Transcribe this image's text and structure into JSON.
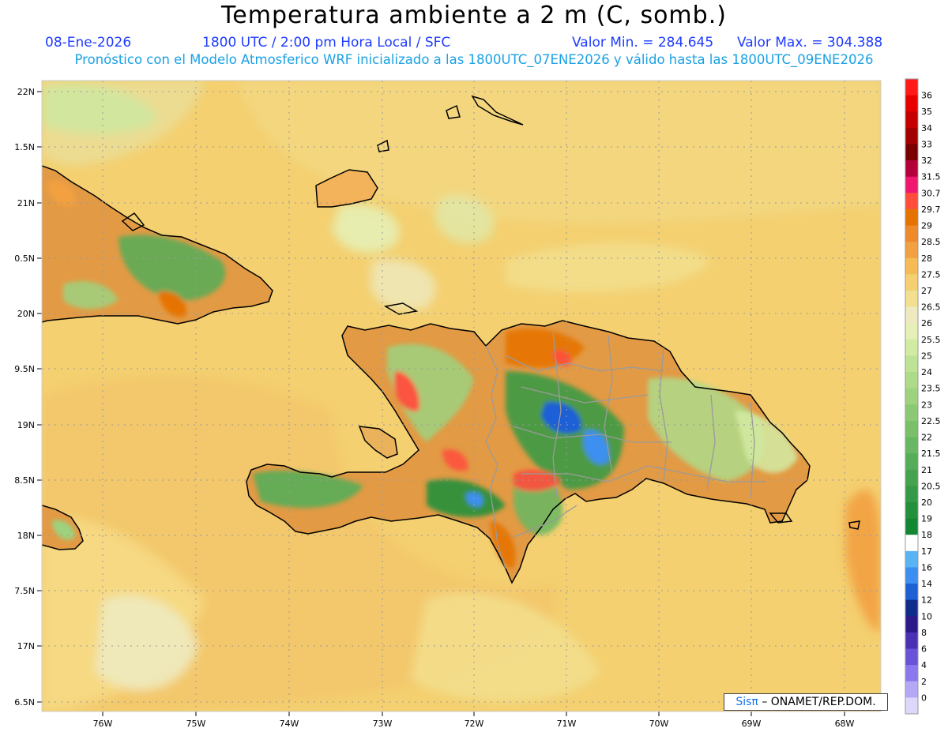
{
  "header": {
    "title": "Temperatura ambiente a 2 m (C, somb.)",
    "date": "08-Ene-2026",
    "time": "1800 UTC / 2:00 pm Hora Local / SFC",
    "min_label": "Valor Min. = 284.645",
    "max_label": "Valor Max. = 304.388",
    "subtitle": "Pronóstico con el Modelo Atmosferico WRF inicializado a las 1800UTC_07ENE2026 y válido hasta las  1800UTC_09ENE2026"
  },
  "axes": {
    "lat_labels": [
      "22N",
      "1.5N",
      "21N",
      "0.5N",
      "20N",
      "9.5N",
      "19N",
      "8.5N",
      "18N",
      "7.5N",
      "17N",
      "6.5N"
    ],
    "lon_labels": [
      "76W",
      "75W",
      "74W",
      "73W",
      "72W",
      "71W",
      "70W",
      "69W",
      "68W"
    ]
  },
  "colorbar": {
    "labels": [
      "36",
      "35",
      "34",
      "33",
      "32",
      "31.5",
      "30.7",
      "29.7",
      "29",
      "28.5",
      "28",
      "27.5",
      "27",
      "26.5",
      "26",
      "25.5",
      "25",
      "24",
      "23.5",
      "23",
      "22.5",
      "22",
      "21.5",
      "21",
      "20.5",
      "20",
      "19",
      "18",
      "17",
      "16",
      "14",
      "12",
      "10",
      "8",
      "6",
      "4",
      "2",
      "0"
    ],
    "colors": [
      "#ff1a1a",
      "#e60000",
      "#c40000",
      "#a30000",
      "#7a0000",
      "#b3003b",
      "#f0176f",
      "#ff4d3d",
      "#e67300",
      "#ee8a2a",
      "#f2a040",
      "#f5bb55",
      "#f4d070",
      "#f2e090",
      "#eeeac0",
      "#e6efb5",
      "#d2eba3",
      "#bfe396",
      "#aedb8a",
      "#9dd27f",
      "#8cc975",
      "#7ac06b",
      "#68b762",
      "#56ad58",
      "#45a34f",
      "#349a46",
      "#22903c",
      "#118733",
      "#ffffff",
      "#59b4f5",
      "#3c8ff0",
      "#1e5fd6",
      "#102c8a",
      "#2d1a8a",
      "#4b30b5",
      "#6a52d9",
      "#8c78ee",
      "#b4a8f5",
      "#dcd8fb"
    ]
  },
  "credit": {
    "brand": "Sisπ",
    "text": "– ONAMET/REP.DOM."
  }
}
